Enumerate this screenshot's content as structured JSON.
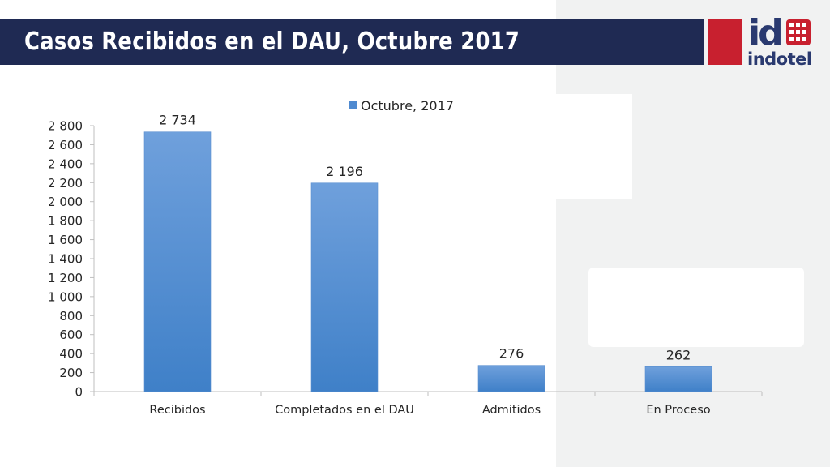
{
  "slide": {
    "title": "Casos Recibidos en el DAU, Octubre 2017"
  },
  "logo": {
    "id_text": "id",
    "name_text": "indotel",
    "brand_colors": {
      "navy": "#2a3a70",
      "red": "#c8202f"
    }
  },
  "colors": {
    "title_bar": "#1f2a53",
    "accent_red": "#c8202f",
    "bar_top": "#6fa0dc",
    "bar_bottom": "#3f80c8",
    "axis": "#bfbfbf",
    "text": "#262626"
  },
  "chart_data": {
    "type": "bar",
    "categories": [
      "Recibidos",
      "Completados en el DAU",
      "Admitidos",
      "En Proceso"
    ],
    "series": [
      {
        "name": "Octubre, 2017",
        "values": [
          2734,
          2196,
          276,
          262
        ]
      }
    ],
    "data_labels": [
      "2 734",
      "2 196",
      "276",
      "262"
    ],
    "y_ticks": [
      0,
      200,
      400,
      600,
      800,
      1000,
      1200,
      1400,
      1600,
      1800,
      2000,
      2200,
      2400,
      2600,
      2800
    ],
    "y_tick_labels": [
      "0",
      "200",
      "400",
      "600",
      "800",
      "1 000",
      "1 200",
      "1 400",
      "1 600",
      "1 800",
      "2 000",
      "2 200",
      "2 400",
      "2 600",
      "2 800"
    ],
    "ylim": [
      0,
      2800
    ],
    "grid": false,
    "legend_position": "top-right"
  }
}
